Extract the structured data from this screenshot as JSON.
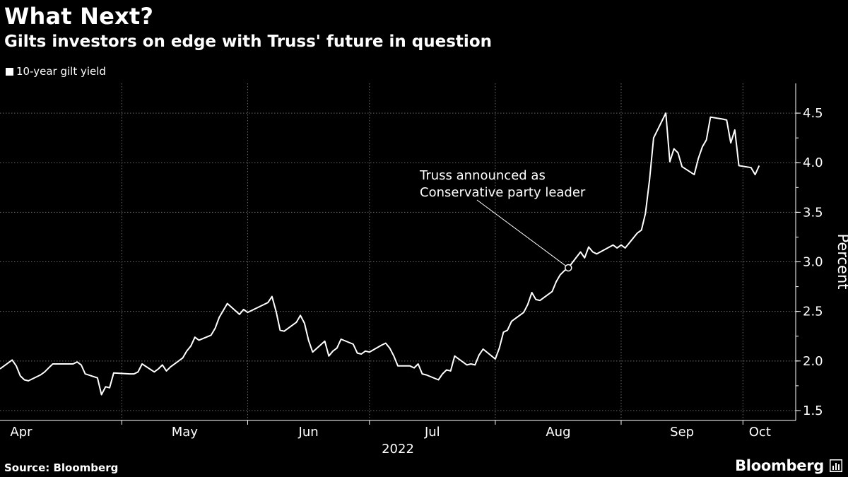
{
  "header": {
    "title": "What Next?",
    "subtitle": "Gilts investors on edge with Truss' future in question"
  },
  "footer": {
    "source": "Source: Bloomberg",
    "brand": "Bloomberg"
  },
  "icons": {
    "brand_mark": "bloomberg-terminal-icon"
  },
  "colors": {
    "background": "#000000",
    "line": "#ffffff",
    "grid": "#666666"
  },
  "chart_data": {
    "type": "line",
    "title": "What Next?",
    "subtitle": "Gilts investors on edge with Truss' future in question",
    "ylabel": "Percent",
    "xlabel": "2022",
    "ylim": [
      1.4,
      4.8
    ],
    "yticks": [
      1.5,
      2.0,
      2.5,
      3.0,
      3.5,
      4.0,
      4.5
    ],
    "ytick_labels": [
      "1.5",
      "2.0",
      "2.5",
      "3.0",
      "3.5",
      "4.0",
      "4.5"
    ],
    "xlim": [
      "2022-04-01",
      "2022-10-14"
    ],
    "month_labels": [
      {
        "label": "Apr",
        "date": "2022-04-01"
      },
      {
        "label": "May",
        "date": "2022-05-01"
      },
      {
        "label": "Jun",
        "date": "2022-06-01"
      },
      {
        "label": "Jul",
        "date": "2022-07-01"
      },
      {
        "label": "Aug",
        "date": "2022-08-01"
      },
      {
        "label": "Sep",
        "date": "2022-09-01"
      },
      {
        "label": "Oct",
        "date": "2022-10-01"
      }
    ],
    "month_gridlines": [
      "2022-05-01",
      "2022-06-01",
      "2022-07-01",
      "2022-08-01",
      "2022-09-01",
      "2022-10-01"
    ],
    "year_label": "2022",
    "grid": true,
    "legend_position": "top-left",
    "series": [
      {
        "name": "10-year gilt yield",
        "points": [
          [
            "2022-04-01",
            1.92
          ],
          [
            "2022-04-04",
            2.01
          ],
          [
            "2022-04-05",
            1.95
          ],
          [
            "2022-04-06",
            1.85
          ],
          [
            "2022-04-07",
            1.81
          ],
          [
            "2022-04-08",
            1.8
          ],
          [
            "2022-04-11",
            1.86
          ],
          [
            "2022-04-12",
            1.89
          ],
          [
            "2022-04-13",
            1.93
          ],
          [
            "2022-04-14",
            1.97
          ],
          [
            "2022-04-19",
            1.97
          ],
          [
            "2022-04-20",
            1.99
          ],
          [
            "2022-04-21",
            1.96
          ],
          [
            "2022-04-22",
            1.87
          ],
          [
            "2022-04-25",
            1.83
          ],
          [
            "2022-04-26",
            1.66
          ],
          [
            "2022-04-27",
            1.74
          ],
          [
            "2022-04-28",
            1.73
          ],
          [
            "2022-04-29",
            1.88
          ],
          [
            "2022-05-03",
            1.87
          ],
          [
            "2022-05-04",
            1.87
          ],
          [
            "2022-05-05",
            1.89
          ],
          [
            "2022-05-06",
            1.97
          ],
          [
            "2022-05-09",
            1.89
          ],
          [
            "2022-05-10",
            1.92
          ],
          [
            "2022-05-11",
            1.96
          ],
          [
            "2022-05-12",
            1.9
          ],
          [
            "2022-05-13",
            1.94
          ],
          [
            "2022-05-16",
            2.03
          ],
          [
            "2022-05-17",
            2.1
          ],
          [
            "2022-05-18",
            2.15
          ],
          [
            "2022-05-19",
            2.24
          ],
          [
            "2022-05-20",
            2.21
          ],
          [
            "2022-05-23",
            2.26
          ],
          [
            "2022-05-24",
            2.33
          ],
          [
            "2022-05-25",
            2.44
          ],
          [
            "2022-05-26",
            2.51
          ],
          [
            "2022-05-27",
            2.58
          ],
          [
            "2022-05-30",
            2.47
          ],
          [
            "2022-05-31",
            2.52
          ],
          [
            "2022-06-01",
            2.49
          ],
          [
            "2022-06-06",
            2.59
          ],
          [
            "2022-06-07",
            2.65
          ],
          [
            "2022-06-08",
            2.5
          ],
          [
            "2022-06-09",
            2.31
          ],
          [
            "2022-06-10",
            2.3
          ],
          [
            "2022-06-13",
            2.39
          ],
          [
            "2022-06-14",
            2.46
          ],
          [
            "2022-06-15",
            2.38
          ],
          [
            "2022-06-16",
            2.21
          ],
          [
            "2022-06-17",
            2.09
          ],
          [
            "2022-06-20",
            2.2
          ],
          [
            "2022-06-21",
            2.05
          ],
          [
            "2022-06-22",
            2.1
          ],
          [
            "2022-06-23",
            2.13
          ],
          [
            "2022-06-24",
            2.22
          ],
          [
            "2022-06-27",
            2.17
          ],
          [
            "2022-06-28",
            2.08
          ],
          [
            "2022-06-29",
            2.07
          ],
          [
            "2022-06-30",
            2.1
          ],
          [
            "2022-07-01",
            2.09
          ],
          [
            "2022-07-04",
            2.16
          ],
          [
            "2022-07-05",
            2.18
          ],
          [
            "2022-07-06",
            2.13
          ],
          [
            "2022-07-07",
            2.05
          ],
          [
            "2022-07-08",
            1.95
          ],
          [
            "2022-07-11",
            1.95
          ],
          [
            "2022-07-12",
            1.93
          ],
          [
            "2022-07-13",
            1.97
          ],
          [
            "2022-07-14",
            1.87
          ],
          [
            "2022-07-15",
            1.86
          ],
          [
            "2022-07-18",
            1.81
          ],
          [
            "2022-07-19",
            1.87
          ],
          [
            "2022-07-20",
            1.91
          ],
          [
            "2022-07-21",
            1.9
          ],
          [
            "2022-07-22",
            2.05
          ],
          [
            "2022-07-25",
            1.96
          ],
          [
            "2022-07-26",
            1.97
          ],
          [
            "2022-07-27",
            1.96
          ],
          [
            "2022-07-28",
            2.06
          ],
          [
            "2022-07-29",
            2.12
          ],
          [
            "2022-08-01",
            2.02
          ],
          [
            "2022-08-02",
            2.13
          ],
          [
            "2022-08-03",
            2.29
          ],
          [
            "2022-08-04",
            2.31
          ],
          [
            "2022-08-05",
            2.4
          ],
          [
            "2022-08-08",
            2.49
          ],
          [
            "2022-08-09",
            2.57
          ],
          [
            "2022-08-10",
            2.69
          ],
          [
            "2022-08-11",
            2.62
          ],
          [
            "2022-08-12",
            2.61
          ],
          [
            "2022-08-15",
            2.7
          ],
          [
            "2022-08-16",
            2.8
          ],
          [
            "2022-08-17",
            2.87
          ],
          [
            "2022-08-18",
            2.91
          ],
          [
            "2022-08-19",
            2.94
          ],
          [
            "2022-08-22",
            3.1
          ],
          [
            "2022-08-23",
            3.04
          ],
          [
            "2022-08-24",
            3.15
          ],
          [
            "2022-08-25",
            3.1
          ],
          [
            "2022-08-26",
            3.08
          ],
          [
            "2022-08-30",
            3.17
          ],
          [
            "2022-08-31",
            3.14
          ],
          [
            "2022-09-01",
            3.17
          ],
          [
            "2022-09-02",
            3.14
          ],
          [
            "2022-09-05",
            3.29
          ],
          [
            "2022-09-06",
            3.32
          ],
          [
            "2022-09-07",
            3.49
          ],
          [
            "2022-09-08",
            3.83
          ],
          [
            "2022-09-09",
            4.25
          ],
          [
            "2022-09-12",
            4.5
          ],
          [
            "2022-09-13",
            4.01
          ],
          [
            "2022-09-14",
            4.14
          ],
          [
            "2022-09-15",
            4.1
          ],
          [
            "2022-09-16",
            3.96
          ],
          [
            "2022-09-19",
            3.88
          ],
          [
            "2022-09-20",
            4.04
          ],
          [
            "2022-09-21",
            4.16
          ],
          [
            "2022-09-22",
            4.23
          ],
          [
            "2022-09-23",
            4.46
          ],
          [
            "2022-09-26",
            4.44
          ],
          [
            "2022-09-27",
            4.43
          ],
          [
            "2022-09-28",
            4.2
          ],
          [
            "2022-09-29",
            4.33
          ],
          [
            "2022-09-30",
            3.97
          ],
          [
            "2022-10-03",
            3.95
          ],
          [
            "2022-10-04",
            3.88
          ],
          [
            "2022-10-05",
            3.97
          ]
        ]
      }
    ],
    "annotations": [
      {
        "lines": [
          "Truss announced as",
          "Conservative party leader"
        ],
        "date": "2022-08-19",
        "value": 2.94
      }
    ]
  }
}
